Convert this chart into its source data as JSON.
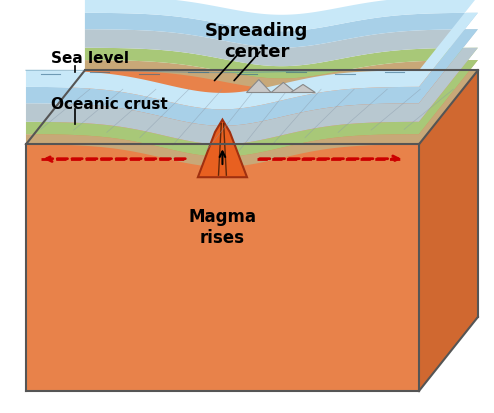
{
  "title": "Spreading\ncenter",
  "label_sea_level": "Sea level",
  "label_oceanic_crust": "Oceanic crust",
  "label_magma": "Magma\nrises",
  "bg_color": "#ffffff",
  "mantle_color": "#E8824A",
  "mantle_dark_color": "#D06830",
  "crust_color": "#C8A878",
  "green_layer_color": "#A8C878",
  "ocean_bottom_color": "#B8D8A0",
  "water_color": "#A8D0E8",
  "water_top_color": "#C8E8F8",
  "magma_color": "#E86020",
  "magma_dark": "#A03010",
  "arrow_color": "#CC0000",
  "text_color": "#000000",
  "border_color": "#555555"
}
